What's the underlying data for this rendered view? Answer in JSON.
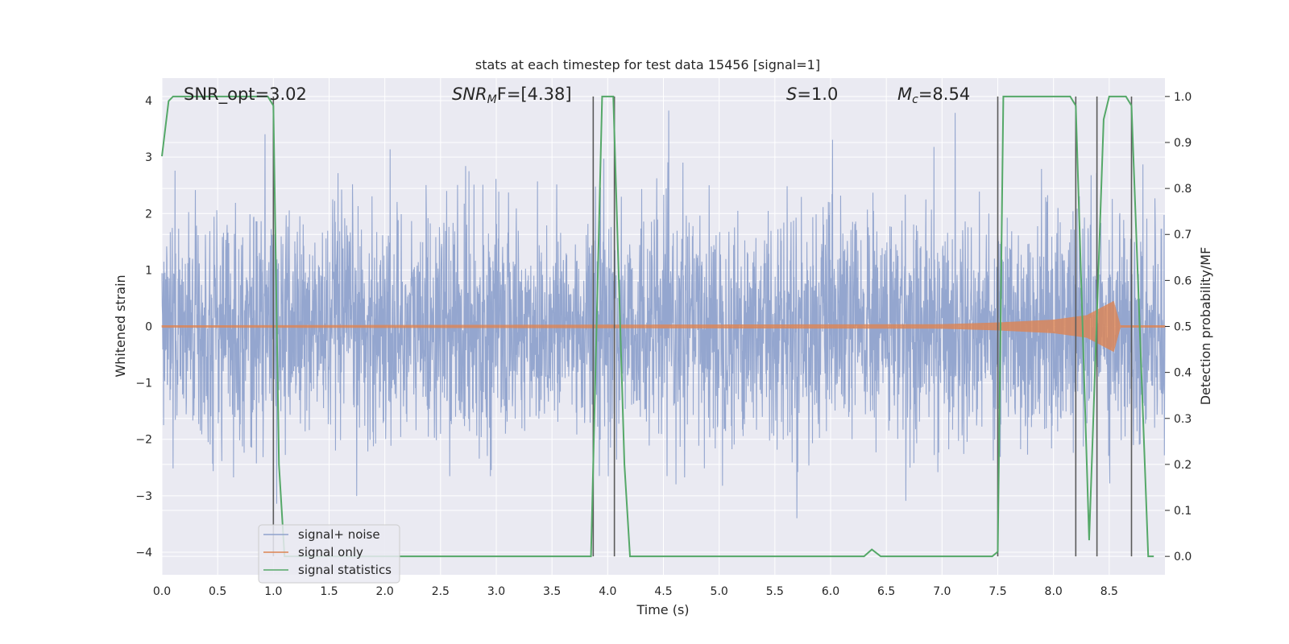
{
  "chart_data": {
    "type": "line",
    "title": "stats at each timestep for test data 15456 [signal=1]",
    "xlabel": "Time (s)",
    "ylabel": "Whitened strain",
    "ylabel_right": "Detection probability/MF",
    "xlim": [
      0.0,
      9.0
    ],
    "ylim": [
      -4.4,
      4.4
    ],
    "ylim_right": [
      -0.04,
      1.04
    ],
    "x_ticks": [
      "0.0",
      "0.5",
      "1.0",
      "1.5",
      "2.0",
      "2.5",
      "3.0",
      "3.5",
      "4.0",
      "4.5",
      "5.0",
      "5.5",
      "6.0",
      "6.5",
      "7.0",
      "7.5",
      "8.0",
      "8.5"
    ],
    "y_ticks": [
      "−4",
      "−3",
      "−2",
      "−1",
      "0",
      "1",
      "2",
      "3",
      "4"
    ],
    "y_ticks_right": [
      "0.0",
      "0.1",
      "0.2",
      "0.3",
      "0.4",
      "0.5",
      "0.6",
      "0.7",
      "0.8",
      "0.9",
      "1.0"
    ],
    "grid": true,
    "annotations": {
      "snr_opt": "SNR_opt=3.02",
      "snr_mf_base": "SNR",
      "snr_mf_sub": "M",
      "snr_mf_rest": "F=[4.38]",
      "s_base": "S",
      "s_rest": "=1.0",
      "mc_base": "M",
      "mc_sub": "c",
      "mc_rest": "=8.54"
    },
    "legend": {
      "placement": "lower-left",
      "entries": [
        "signal+ noise",
        "signal only",
        "signal statistics"
      ]
    },
    "series": [
      {
        "name": "signal+ noise",
        "color": "#8fa2cc",
        "kind": "noise",
        "amplitude_std": 1.0
      },
      {
        "name": "signal only",
        "color": "#dd8452",
        "kind": "chirp",
        "x": [
          0.0,
          7.0,
          7.5,
          8.0,
          8.3,
          8.54,
          8.6,
          9.0
        ],
        "envelope": [
          0.02,
          0.04,
          0.07,
          0.12,
          0.2,
          0.45,
          0.02,
          0.02
        ]
      },
      {
        "name": "signal statistics",
        "color": "#55a868",
        "axis": "right",
        "x": [
          0.0,
          0.06,
          0.1,
          0.95,
          1.0,
          1.05,
          1.1,
          3.8,
          3.85,
          3.95,
          4.05,
          4.15,
          4.2,
          6.3,
          6.37,
          6.45,
          7.45,
          7.5,
          7.55,
          8.15,
          8.2,
          8.32,
          8.45,
          8.5,
          8.65,
          8.7,
          8.85,
          8.9
        ],
        "y": [
          0.87,
          0.99,
          1.0,
          1.0,
          0.98,
          0.2,
          0.0,
          0.0,
          0.0,
          1.0,
          1.0,
          0.2,
          0.0,
          0.0,
          0.015,
          0.0,
          0.0,
          0.01,
          1.0,
          1.0,
          0.98,
          0.035,
          0.95,
          1.0,
          1.0,
          0.98,
          0.0,
          0.0
        ]
      }
    ],
    "vertical_lines_x": [
      1.0,
      3.87,
      4.06,
      7.5,
      8.2,
      8.39,
      8.7
    ],
    "colors": {
      "axes_bg": "#eaeaf2",
      "grid": "#ffffff",
      "vline": "#5a5a5a",
      "text": "#262626"
    }
  }
}
